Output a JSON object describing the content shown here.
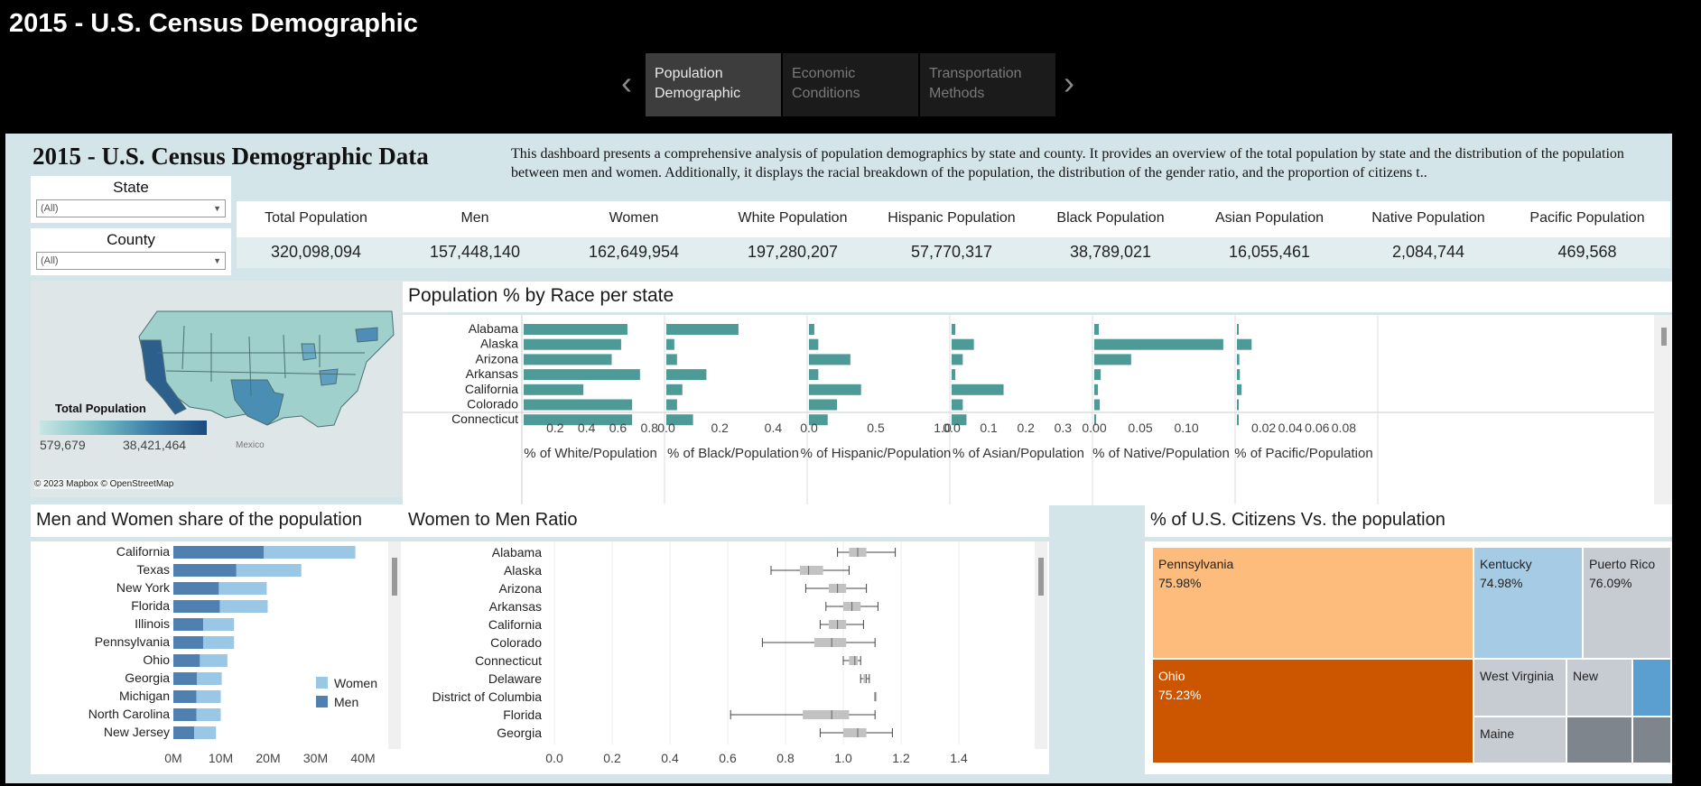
{
  "app": {
    "title": "2015 - U.S.  Census Demographic"
  },
  "tabs": [
    {
      "label": "Population Demographic",
      "active": true
    },
    {
      "label": "Economic Conditions",
      "active": false
    },
    {
      "label": "Transportation Methods",
      "active": false
    }
  ],
  "nav": {
    "prev_icon": "chevron-left-icon",
    "next_icon": "chevron-right-icon"
  },
  "dashboard": {
    "title": "2015 - U.S. Census Demographic Data",
    "description": "This dashboard presents a comprehensive analysis of population demographics by state and county. It provides an overview of the total population by state and the distribution of the population between men and women. Additionally, it displays the racial breakdown of the population, the distribution of the gender ratio, and the proportion of citizens t.."
  },
  "filters": {
    "state": {
      "label": "State",
      "value": "(All)"
    },
    "county": {
      "label": "County",
      "value": "(All)"
    }
  },
  "kpis": [
    {
      "label": "Total Population",
      "value": "320,098,094"
    },
    {
      "label": "Men",
      "value": "157,448,140"
    },
    {
      "label": "Women",
      "value": "162,649,954"
    },
    {
      "label": "White Population",
      "value": "197,280,207"
    },
    {
      "label": "Hispanic Population",
      "value": "57,770,317"
    },
    {
      "label": "Black Population",
      "value": "38,789,021"
    },
    {
      "label": "Asian Population",
      "value": "16,055,461"
    },
    {
      "label": "Native Population",
      "value": "2,084,744"
    },
    {
      "label": "Pacific Population",
      "value": "469,568"
    }
  ],
  "map": {
    "legend_title": "Total Population",
    "legend_min": "579,679",
    "legend_max": "38,421,464",
    "credit": "© 2023 Mapbox © OpenStreetMap",
    "place_label": "Mexico",
    "colors": {
      "low": "#c9e6e3",
      "high": "#1b4a7f"
    }
  },
  "race_chart": {
    "title": "Population % by Race per state",
    "bar_color": "#4e9a96"
  },
  "gender_chart": {
    "title": "Men and Women share of the population",
    "legend": [
      {
        "label": "Women",
        "color": "#9ac7e6"
      },
      {
        "label": "Men",
        "color": "#4f80b0"
      }
    ]
  },
  "ratio_chart": {
    "title": "Women to Men Ratio"
  },
  "treemap": {
    "title": "% of U.S. Citizens Vs. the population",
    "cells": [
      {
        "state": "Pennsylvania",
        "pct": "75.98%",
        "color": "#fdbb7c"
      },
      {
        "state": "Kentucky",
        "pct": "74.98%",
        "color": "#a6cbe5"
      },
      {
        "state": "Puerto Rico",
        "pct": "76.09%",
        "color": "#c7ccd3"
      },
      {
        "state": "Ohio",
        "pct": "75.23%",
        "color": "#cc5500"
      },
      {
        "state": "West Virginia",
        "pct": "",
        "color": "#c7ccd3"
      },
      {
        "state": "New",
        "pct": "",
        "color": "#c7ccd3"
      },
      {
        "state": "Maine",
        "pct": "",
        "color": "#c7ccd3"
      },
      {
        "state": "",
        "pct": "",
        "color": "#5b9fd1"
      },
      {
        "state": "",
        "pct": "",
        "color": "#7f858d"
      },
      {
        "state": "",
        "pct": "",
        "color": "#7f858d"
      }
    ]
  },
  "chart_data": [
    {
      "type": "bar",
      "title": "Population % by Race per state",
      "orientation": "horizontal",
      "categories": [
        "Alabama",
        "Alaska",
        "Arizona",
        "Arkansas",
        "California",
        "Colorado",
        "Connecticut"
      ],
      "series": [
        {
          "name": "% of White/Population",
          "values": [
            0.66,
            0.62,
            0.56,
            0.74,
            0.38,
            0.69,
            0.69
          ],
          "ticks": [
            "0.2",
            "0.4",
            "0.6",
            "0.8"
          ],
          "xlim": [
            0,
            0.85
          ]
        },
        {
          "name": "% of Black/Population",
          "values": [
            0.27,
            0.03,
            0.04,
            0.15,
            0.06,
            0.04,
            0.1
          ],
          "ticks": [
            "0.0",
            "0.2",
            "0.4"
          ],
          "xlim": [
            0,
            0.5
          ]
        },
        {
          "name": "% of Hispanic/Population",
          "values": [
            0.04,
            0.07,
            0.31,
            0.07,
            0.39,
            0.21,
            0.14
          ],
          "ticks": [
            "0.0",
            "0.5",
            "1.0"
          ],
          "xlim": [
            0,
            1.0
          ]
        },
        {
          "name": "% of Asian/Population",
          "values": [
            0.01,
            0.06,
            0.03,
            0.01,
            0.14,
            0.03,
            0.04
          ],
          "ticks": [
            "0.0",
            "0.1",
            "0.2",
            "0.3"
          ],
          "xlim": [
            0,
            0.36
          ]
        },
        {
          "name": "% of Native/Population",
          "values": [
            0.005,
            0.14,
            0.04,
            0.007,
            0.004,
            0.006,
            0.002
          ],
          "ticks": [
            "0.00",
            "0.05",
            "0.10"
          ],
          "xlim": [
            0,
            0.145
          ]
        },
        {
          "name": "% of Pacific/Population",
          "values": [
            0.0004,
            0.011,
            0.0018,
            0.0022,
            0.0035,
            0.0014,
            0.0004
          ],
          "ticks": [
            "0.02",
            "0.04",
            "0.06",
            "0.08"
          ],
          "xlim": [
            0,
            0.1
          ]
        }
      ]
    },
    {
      "type": "bar",
      "title": "Men and Women share of the population",
      "orientation": "horizontal",
      "stacked": true,
      "categories": [
        "California",
        "Texas",
        "New York",
        "Florida",
        "Illinois",
        "Pennsylvania",
        "Ohio",
        "Georgia",
        "Michigan",
        "North Carolina",
        "New Jersey"
      ],
      "series": [
        {
          "name": "Men",
          "values": [
            19.1,
            13.3,
            9.6,
            9.8,
            6.3,
            6.3,
            5.6,
            5.0,
            4.9,
            4.9,
            4.4
          ]
        },
        {
          "name": "Women",
          "values": [
            19.3,
            13.7,
            10.1,
            10.1,
            6.5,
            6.5,
            5.8,
            5.2,
            5.1,
            5.1,
            4.6
          ]
        }
      ],
      "ticks": [
        "0M",
        "10M",
        "20M",
        "30M",
        "40M"
      ],
      "xlim": [
        0,
        40
      ]
    },
    {
      "type": "scatter",
      "title": "Women to Men Ratio",
      "subtype": "box-plot",
      "categories": [
        "Alabama",
        "Alaska",
        "Arizona",
        "Arkansas",
        "California",
        "Colorado",
        "Connecticut",
        "Delaware",
        "District of Columbia",
        "Florida",
        "Georgia"
      ],
      "boxes": [
        {
          "min": 0.98,
          "q1": 1.02,
          "median": 1.05,
          "q3": 1.08,
          "max": 1.18
        },
        {
          "min": 0.75,
          "q1": 0.85,
          "median": 0.88,
          "q3": 0.93,
          "max": 1.02
        },
        {
          "min": 0.87,
          "q1": 0.95,
          "median": 0.98,
          "q3": 1.01,
          "max": 1.08
        },
        {
          "min": 0.94,
          "q1": 1.0,
          "median": 1.03,
          "q3": 1.06,
          "max": 1.12
        },
        {
          "min": 0.92,
          "q1": 0.95,
          "median": 0.98,
          "q3": 1.01,
          "max": 1.07
        },
        {
          "min": 0.72,
          "q1": 0.9,
          "median": 0.96,
          "q3": 1.01,
          "max": 1.11
        },
        {
          "min": 1.0,
          "q1": 1.02,
          "median": 1.04,
          "q3": 1.05,
          "max": 1.06
        },
        {
          "min": 1.06,
          "q1": 1.07,
          "median": 1.08,
          "q3": 1.08,
          "max": 1.09
        },
        {
          "min": 1.11,
          "q1": 1.11,
          "median": 1.11,
          "q3": 1.11,
          "max": 1.11
        },
        {
          "min": 0.61,
          "q1": 0.86,
          "median": 0.96,
          "q3": 1.02,
          "max": 1.11
        },
        {
          "min": 0.92,
          "q1": 1.0,
          "median": 1.05,
          "q3": 1.08,
          "max": 1.17
        }
      ],
      "ticks": [
        "0.0",
        "0.2",
        "0.4",
        "0.6",
        "0.8",
        "1.0",
        "1.2",
        "1.4"
      ],
      "xlim": [
        0,
        1.5
      ]
    }
  ]
}
